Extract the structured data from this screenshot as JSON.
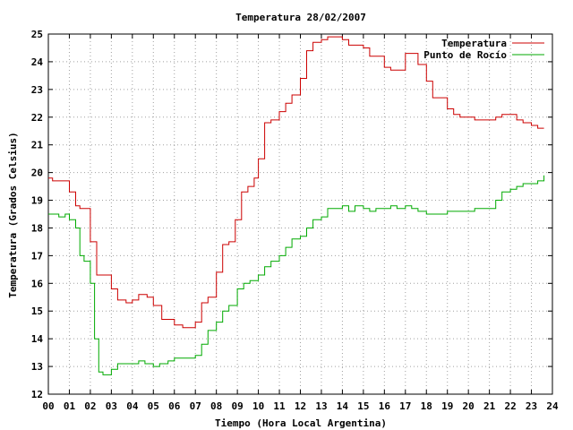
{
  "chart_data": {
    "type": "line",
    "title": "Temperatura 28/02/2007",
    "xlabel": "Tiempo (Hora Local Argentina)",
    "ylabel": "Temperatura (Grados Celsius)",
    "xlim": [
      0,
      24
    ],
    "ylim": [
      12,
      25
    ],
    "x_ticks": [
      "00",
      "01",
      "02",
      "03",
      "04",
      "05",
      "06",
      "07",
      "08",
      "09",
      "10",
      "11",
      "12",
      "13",
      "14",
      "15",
      "16",
      "17",
      "18",
      "19",
      "20",
      "21",
      "22",
      "23",
      "24"
    ],
    "y_ticks": [
      "12",
      "13",
      "14",
      "15",
      "16",
      "17",
      "18",
      "19",
      "20",
      "21",
      "22",
      "23",
      "24",
      "25"
    ],
    "grid": true,
    "legend_position": "top-right",
    "series": [
      {
        "name": "Temperatura",
        "color": "#cc0000",
        "x": [
          0,
          0.2,
          0.5,
          1.0,
          1.3,
          1.5,
          2.0,
          2.3,
          2.6,
          3.0,
          3.3,
          3.7,
          4.0,
          4.3,
          4.7,
          5.0,
          5.4,
          5.7,
          6.0,
          6.4,
          6.7,
          7.0,
          7.3,
          7.6,
          8.0,
          8.3,
          8.6,
          8.9,
          9.2,
          9.5,
          9.8,
          10.0,
          10.3,
          10.6,
          11.0,
          11.3,
          11.6,
          12.0,
          12.3,
          12.6,
          13.0,
          13.3,
          13.6,
          14.0,
          14.3,
          14.6,
          15.0,
          15.3,
          15.6,
          16.0,
          16.3,
          16.7,
          17.0,
          17.3,
          17.6,
          18.0,
          18.3,
          18.6,
          19.0,
          19.3,
          19.6,
          20.0,
          20.3,
          20.6,
          21.0,
          21.3,
          21.6,
          22.0,
          22.3,
          22.6,
          23.0,
          23.3,
          23.6
        ],
        "values": [
          19.8,
          19.7,
          19.7,
          19.3,
          18.8,
          18.7,
          17.5,
          16.3,
          16.3,
          15.8,
          15.4,
          15.3,
          15.4,
          15.6,
          15.5,
          15.2,
          14.7,
          14.7,
          14.5,
          14.4,
          14.4,
          14.6,
          15.3,
          15.5,
          16.4,
          17.4,
          17.5,
          18.3,
          19.3,
          19.5,
          19.8,
          20.5,
          21.8,
          21.9,
          22.2,
          22.5,
          22.8,
          23.4,
          24.4,
          24.7,
          24.8,
          24.9,
          24.9,
          24.8,
          24.6,
          24.6,
          24.5,
          24.2,
          24.2,
          23.8,
          23.7,
          23.7,
          24.3,
          24.3,
          23.9,
          23.3,
          22.7,
          22.7,
          22.3,
          22.1,
          22.0,
          22.0,
          21.9,
          21.9,
          21.9,
          22.0,
          22.1,
          22.1,
          21.9,
          21.8,
          21.7,
          21.6,
          21.6
        ]
      },
      {
        "name": "Punto de Rocío",
        "color": "#00aa00",
        "x": [
          0,
          0.3,
          0.5,
          0.8,
          1.0,
          1.3,
          1.5,
          1.7,
          2.0,
          2.2,
          2.4,
          2.6,
          2.8,
          3.0,
          3.3,
          3.6,
          4.0,
          4.3,
          4.6,
          5.0,
          5.3,
          5.7,
          6.0,
          6.4,
          6.7,
          7.0,
          7.3,
          7.6,
          8.0,
          8.3,
          8.6,
          9.0,
          9.3,
          9.6,
          10.0,
          10.3,
          10.6,
          11.0,
          11.3,
          11.6,
          12.0,
          12.3,
          12.6,
          13.0,
          13.3,
          13.6,
          14.0,
          14.3,
          14.6,
          15.0,
          15.3,
          15.6,
          16.0,
          16.3,
          16.6,
          17.0,
          17.3,
          17.6,
          18.0,
          18.3,
          18.6,
          19.0,
          19.3,
          19.6,
          20.0,
          20.3,
          20.6,
          21.0,
          21.3,
          21.6,
          22.0,
          22.3,
          22.6,
          23.0,
          23.3,
          23.6
        ],
        "values": [
          18.5,
          18.5,
          18.4,
          18.5,
          18.3,
          18.0,
          17.0,
          16.8,
          16.0,
          14.0,
          12.8,
          12.7,
          12.7,
          12.9,
          13.1,
          13.1,
          13.1,
          13.2,
          13.1,
          13.0,
          13.1,
          13.2,
          13.3,
          13.3,
          13.3,
          13.4,
          13.8,
          14.3,
          14.6,
          15.0,
          15.2,
          15.8,
          16.0,
          16.1,
          16.3,
          16.6,
          16.8,
          17.0,
          17.3,
          17.6,
          17.7,
          18.0,
          18.3,
          18.4,
          18.7,
          18.7,
          18.8,
          18.6,
          18.8,
          18.7,
          18.6,
          18.7,
          18.7,
          18.8,
          18.7,
          18.8,
          18.7,
          18.6,
          18.5,
          18.5,
          18.5,
          18.6,
          18.6,
          18.6,
          18.6,
          18.7,
          18.7,
          18.7,
          19.0,
          19.3,
          19.4,
          19.5,
          19.6,
          19.6,
          19.7,
          19.9
        ]
      }
    ]
  }
}
